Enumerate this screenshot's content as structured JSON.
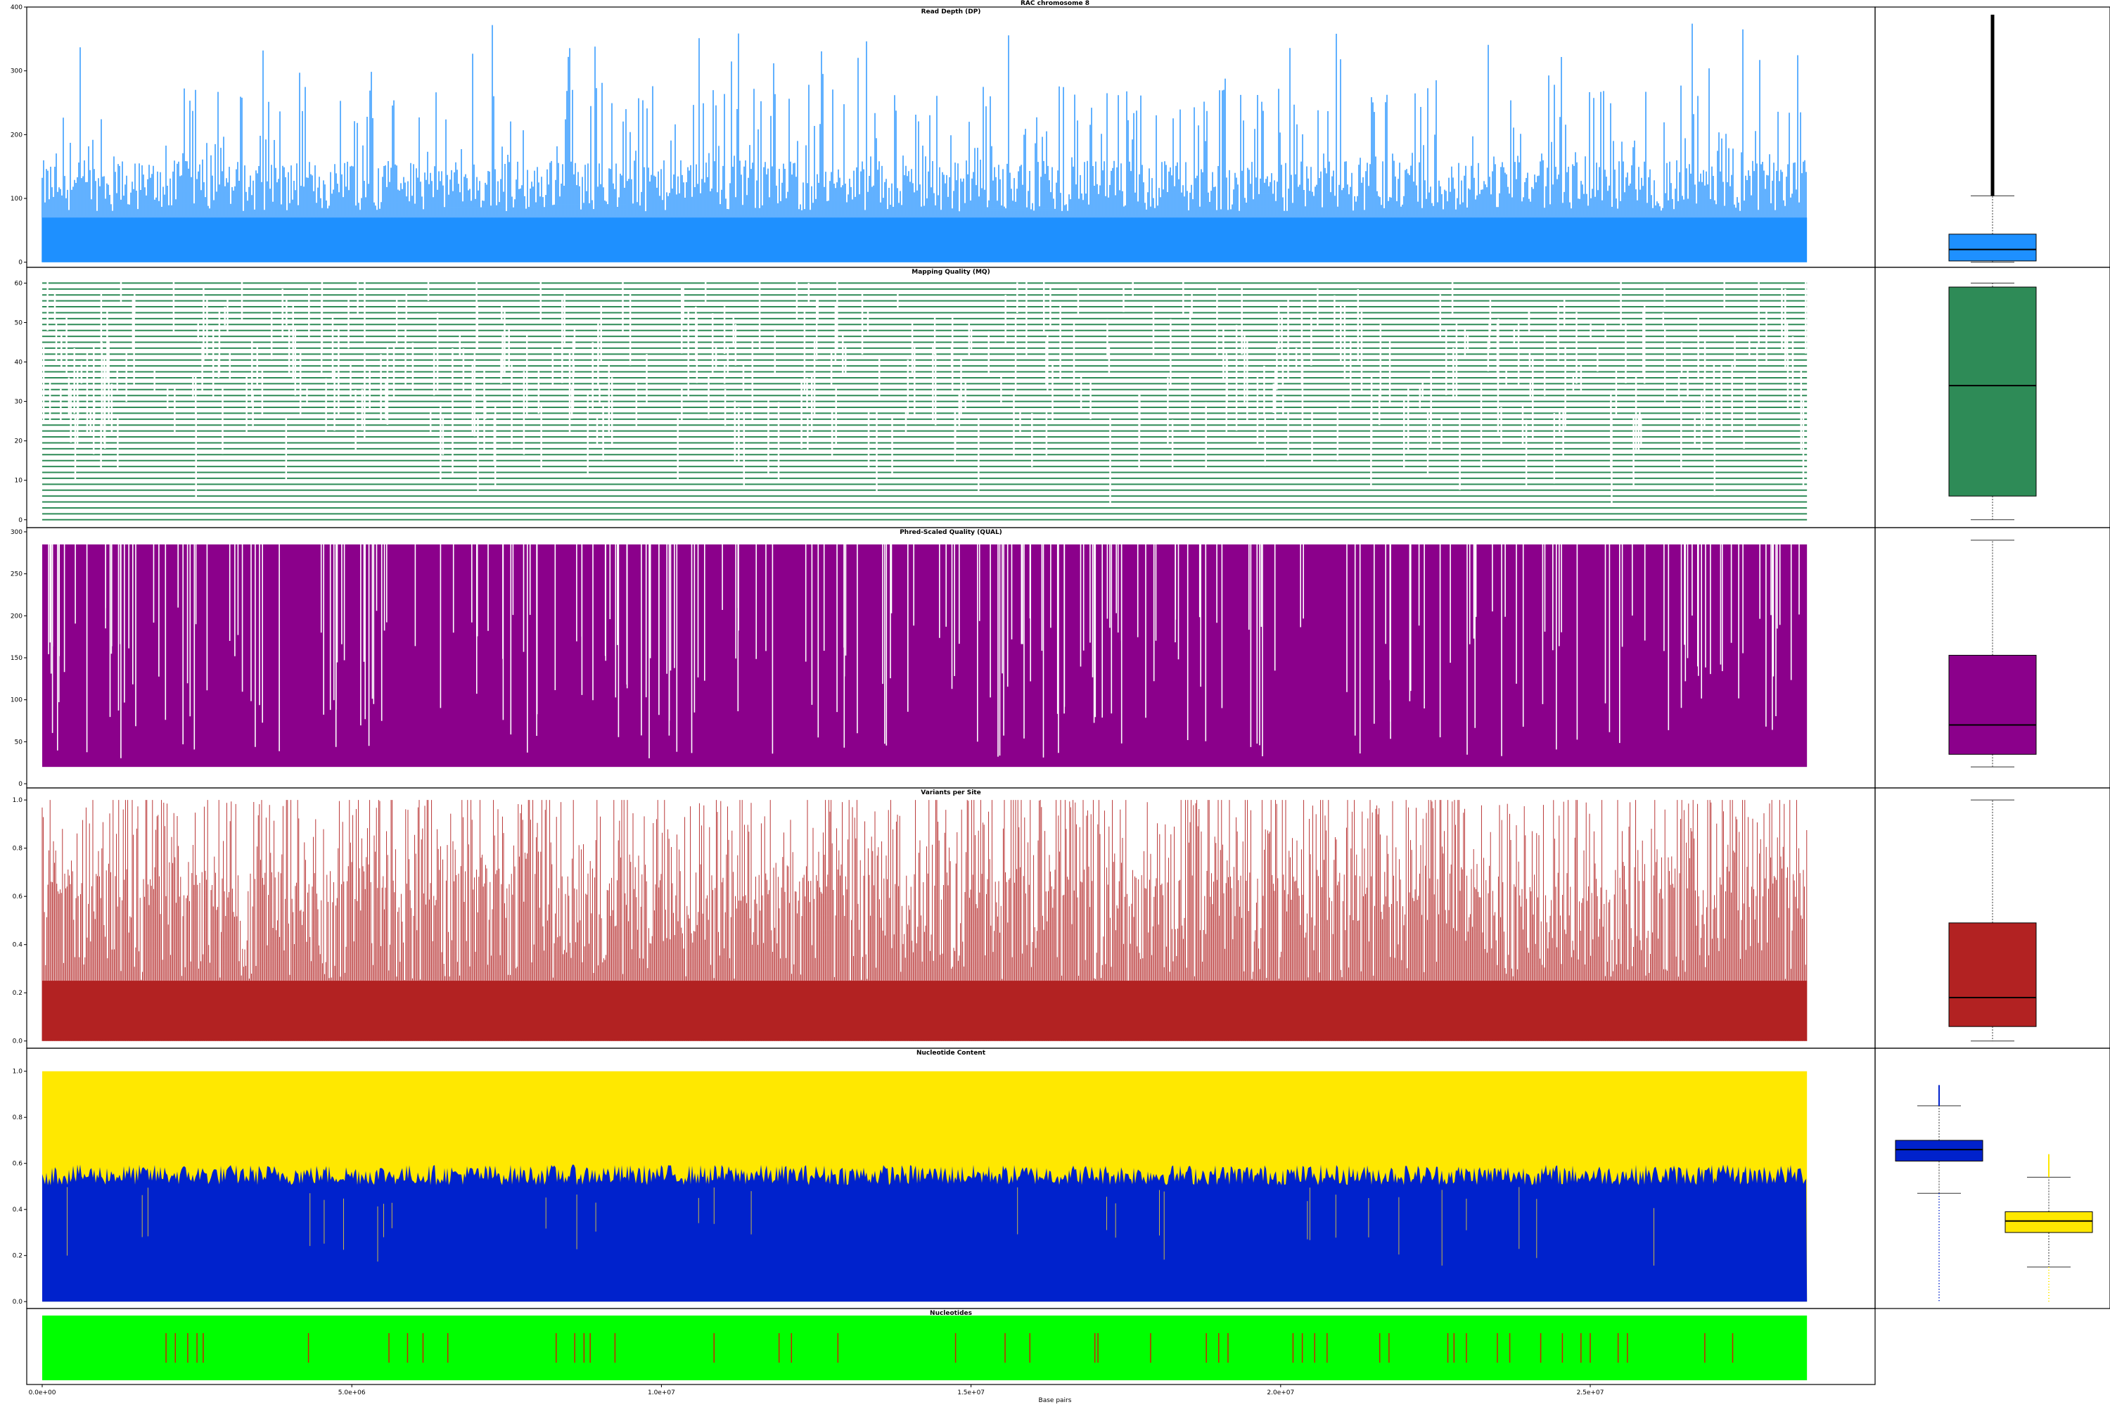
{
  "figure": {
    "suptitle": "RAC chromosome 8",
    "xlabel": "Base pairs"
  },
  "chart_data": [
    {
      "type": "scatter",
      "title": "Read Depth (DP)",
      "color": "#1e90ff",
      "ylim": [
        -8,
        400
      ],
      "yticks": [
        0,
        100,
        200,
        300,
        400
      ],
      "xlim": [
        -250000,
        29600000
      ],
      "box": {
        "min": 0,
        "q1": 2,
        "median": 20,
        "q3": 44,
        "whisker_high": 104,
        "max": 388
      }
    },
    {
      "type": "scatter",
      "title": "Mapping Quality (MQ)",
      "color": "#2e8b57",
      "ylim": [
        -2,
        64
      ],
      "yticks": [
        0,
        10,
        20,
        30,
        40,
        50,
        60
      ],
      "xlim": [
        -250000,
        29600000
      ],
      "box": {
        "min": 0,
        "q1": 6,
        "median": 34,
        "q3": 59,
        "whisker_high": 60,
        "max": 60
      }
    },
    {
      "type": "scatter",
      "title": "Phred-Scaled Quality (QUAL)",
      "color": "#8b008b",
      "ylim": [
        -5,
        305
      ],
      "yticks": [
        0,
        50,
        100,
        150,
        200,
        250,
        300
      ],
      "xlim": [
        -250000,
        29600000
      ],
      "box": {
        "min": 20,
        "q1": 35,
        "median": 70,
        "q3": 153,
        "whisker_high": 290,
        "max": 290
      }
    },
    {
      "type": "line",
      "title": "Variants per Site",
      "color": "#b22222",
      "ylim": [
        -0.03,
        1.05
      ],
      "yticks": [
        0.0,
        0.2,
        0.4,
        0.6,
        0.8,
        1.0
      ],
      "ytick_labels": [
        "0.0",
        "0.2",
        "0.4",
        "0.6",
        "0.8",
        "1.0"
      ],
      "xlim": [
        -250000,
        29600000
      ],
      "box": {
        "min": 0,
        "q1": 0.06,
        "median": 0.18,
        "q3": 0.49,
        "whisker_high": 1.0,
        "max": 1.0
      }
    },
    {
      "type": "area",
      "title": "Nucleotide Content",
      "ylim": [
        -0.03,
        1.1
      ],
      "yticks": [
        0.0,
        0.2,
        0.4,
        0.6,
        0.8,
        1.0
      ],
      "ytick_labels": [
        "0.0",
        "0.2",
        "0.4",
        "0.6",
        "0.8",
        "1.0"
      ],
      "xlim": [
        -250000,
        29600000
      ],
      "series": [
        {
          "color": "#0022cc",
          "mean": 0.55
        },
        {
          "color": "#ffe800",
          "mean": 0.45
        }
      ],
      "box": [
        {
          "color": "#0022cc",
          "min": 0.0,
          "q1": 0.61,
          "median": 0.66,
          "q3": 0.7,
          "whisker_low": 0.47,
          "whisker_high": 0.85,
          "max": 0.94
        },
        {
          "color": "#ffe800",
          "min": 0.0,
          "q1": 0.3,
          "median": 0.35,
          "q3": 0.39,
          "whisker_low": 0.15,
          "whisker_high": 0.54,
          "max": 0.64
        }
      ]
    },
    {
      "type": "other",
      "title": "Nucleotides",
      "xlim": [
        -250000,
        29600000
      ],
      "background_color": "#00ff00",
      "marker_color": "#cc2200",
      "x_start": 0,
      "x_end": 28500000,
      "markers": [
        2000000,
        2150000,
        2350000,
        2500000,
        2600000,
        4300000,
        5600000,
        5900000,
        6150000,
        6550000,
        8300000,
        8600000,
        8750000,
        8850000,
        9250000,
        10850000,
        11900000,
        12100000,
        12850000,
        14750000,
        15550000,
        15950000,
        17000000,
        17050000,
        17900000,
        18800000,
        19000000,
        19150000,
        20200000,
        20350000,
        20550000,
        20750000,
        21600000,
        21750000,
        22700000,
        22800000,
        23000000,
        23500000,
        23700000,
        24200000,
        24550000,
        24850000,
        25000000,
        25450000,
        25600000,
        26850000,
        27300000
      ]
    }
  ],
  "shared_x": {
    "ticks": [
      0,
      5000000,
      10000000,
      15000000,
      20000000,
      25000000
    ],
    "tick_labels": [
      "0.0e+00",
      "5.0e+06",
      "1.0e+07",
      "1.5e+07",
      "2.0e+07",
      "2.5e+07"
    ]
  }
}
